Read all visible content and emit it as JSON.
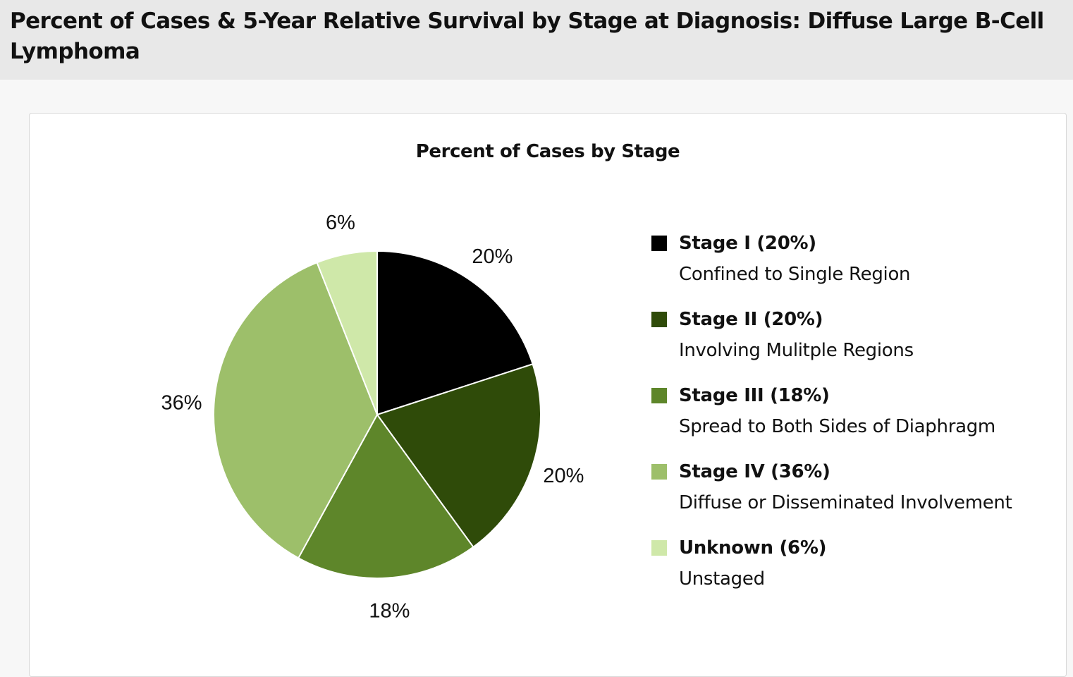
{
  "header": {
    "title": "Percent of Cases & 5-Year Relative Survival by Stage at Diagnosis: Diffuse Large B-Cell Lymphoma"
  },
  "chart_data": {
    "type": "pie",
    "title": "Percent of Cases by Stage",
    "legend_position": "right",
    "slices": [
      {
        "name": "Stage I (20%)",
        "description": "Confined to Single Region",
        "value": 20,
        "label": "20%",
        "color": "#000000"
      },
      {
        "name": "Stage II (20%)",
        "description": "Involving Mulitple Regions",
        "value": 20,
        "label": "20%",
        "color": "#2f4b09"
      },
      {
        "name": "Stage III (18%)",
        "description": "Spread to Both Sides of Diaphragm",
        "value": 18,
        "label": "18%",
        "color": "#5e862a"
      },
      {
        "name": "Stage IV (36%)",
        "description": "Diffuse or Disseminated Involvement",
        "value": 36,
        "label": "36%",
        "color": "#9dbf6a"
      },
      {
        "name": "Unknown (6%)",
        "description": "Unstaged",
        "value": 6,
        "label": "6%",
        "color": "#cfe8a9"
      }
    ]
  }
}
